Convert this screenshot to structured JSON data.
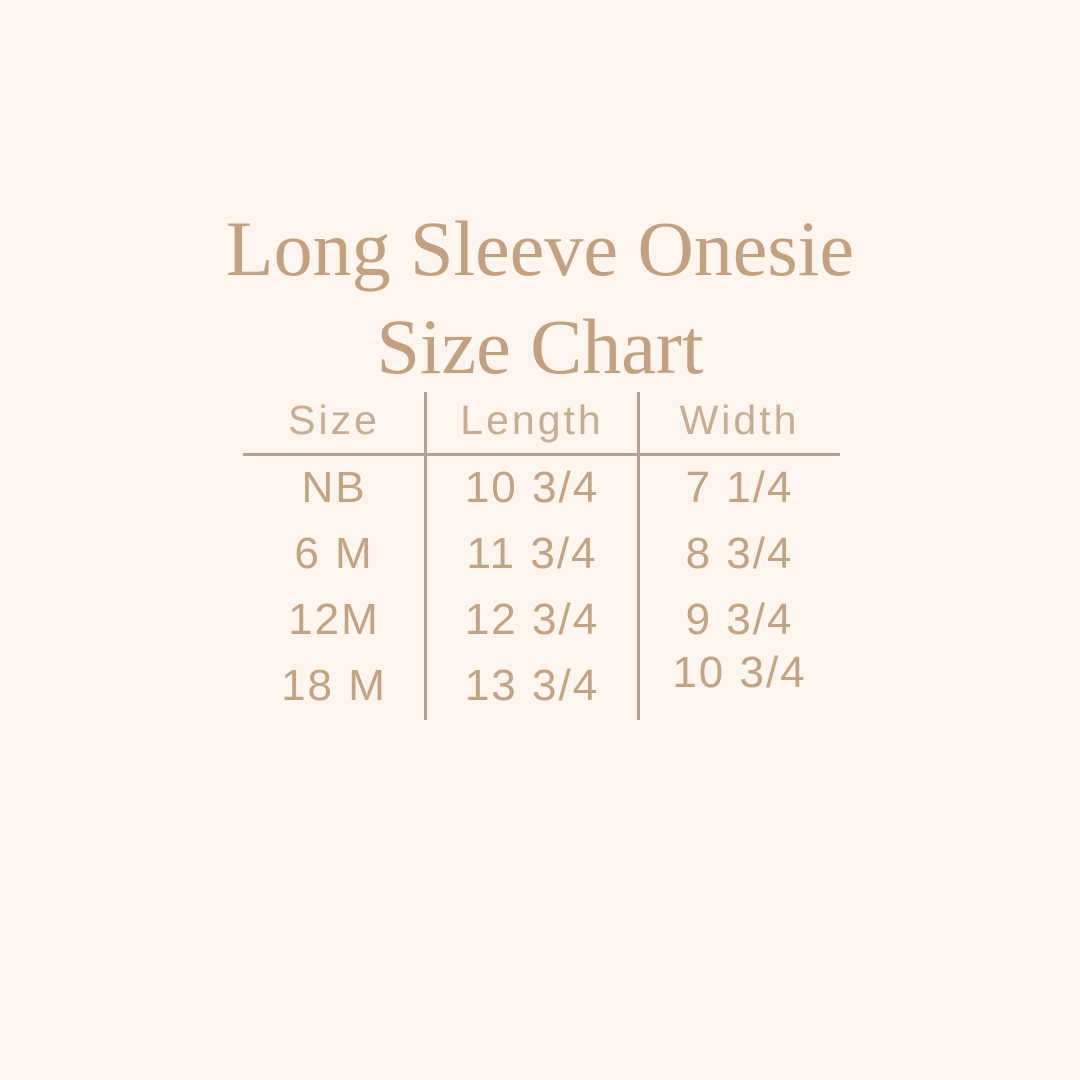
{
  "page": {
    "title_line1": "Long Sleeve Onesie",
    "title_line2": "Size Chart"
  },
  "colors": {
    "background": "#fdf5ee",
    "title_text": "#c3a07f",
    "header_text": "#c7ad93",
    "cell_text": "#c2a384",
    "divider_line": "#b3a295"
  },
  "chart_data": {
    "type": "table",
    "title": "Long Sleeve Onesie Size Chart",
    "columns": [
      "Size",
      "Length",
      "Width"
    ],
    "rows": [
      [
        "NB",
        "10 3/4",
        "7 1/4"
      ],
      [
        "6 M",
        "11 3/4",
        "8 3/4"
      ],
      [
        "12M",
        "12 3/4",
        "9 3/4"
      ],
      [
        "18 M",
        "13 3/4",
        "10 3/4"
      ]
    ],
    "layout_hints": {
      "header_divider": "horizontal line under header row",
      "column_dividers": "vertical lines between the three columns",
      "alignment": "all cells centered"
    }
  }
}
